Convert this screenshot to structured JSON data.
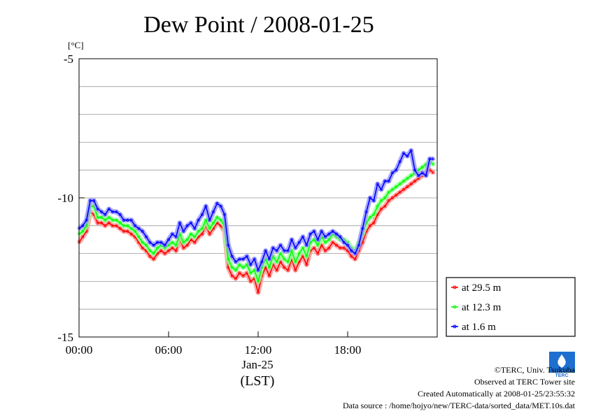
{
  "chart_data": {
    "type": "line",
    "title": "Dew Point / 2008-01-25",
    "ylabel": "[°C]",
    "xlabel_lines": [
      "Jan-25",
      "(LST)"
    ],
    "ylim": [
      -15,
      -5
    ],
    "xlim": [
      0,
      24
    ],
    "y_ticks": [
      {
        "value": -5,
        "label": "-5"
      },
      {
        "value": -10,
        "label": "-10"
      },
      {
        "value": -15,
        "label": "-15"
      }
    ],
    "x_ticks": [
      {
        "value": 0,
        "label": "00:00"
      },
      {
        "value": 6,
        "label": "06:00"
      },
      {
        "value": 12,
        "label": "12:00"
      },
      {
        "value": 18,
        "label": "18:00"
      }
    ],
    "grid": true,
    "legend_position": "outside-bottom-right",
    "series": [
      {
        "name": "at 29.5 m",
        "color": "#ff0000",
        "x": [
          0,
          0.25,
          0.5,
          0.75,
          1.0,
          1.25,
          1.5,
          1.75,
          2.0,
          2.25,
          2.5,
          2.75,
          3.0,
          3.25,
          3.5,
          3.75,
          4.0,
          4.25,
          4.5,
          4.75,
          5.0,
          5.25,
          5.5,
          5.75,
          6.0,
          6.25,
          6.5,
          6.75,
          7.0,
          7.25,
          7.5,
          7.75,
          8.0,
          8.25,
          8.5,
          8.75,
          9.0,
          9.25,
          9.5,
          9.75,
          10.0,
          10.25,
          10.5,
          10.75,
          11.0,
          11.25,
          11.5,
          11.75,
          12.0,
          12.25,
          12.5,
          12.75,
          13.0,
          13.25,
          13.5,
          13.75,
          14.0,
          14.25,
          14.5,
          14.75,
          15.0,
          15.25,
          15.5,
          15.75,
          16.0,
          16.25,
          16.5,
          16.75,
          17.0,
          17.25,
          17.5,
          17.75,
          18.0,
          18.25,
          18.5,
          18.75,
          19.0,
          19.25,
          19.5,
          19.75,
          20.0,
          20.25,
          20.5,
          20.75,
          21.0,
          21.25,
          21.5,
          21.75,
          22.0,
          22.25,
          22.5,
          22.75,
          23.0,
          23.25,
          23.5,
          23.75
        ],
        "values": [
          -11.6,
          -11.4,
          -11.2,
          -10.5,
          -10.6,
          -10.9,
          -10.9,
          -11.0,
          -10.9,
          -11.0,
          -11.0,
          -11.1,
          -11.2,
          -11.2,
          -11.3,
          -11.4,
          -11.6,
          -11.8,
          -11.9,
          -12.1,
          -12.2,
          -12.0,
          -11.9,
          -12.0,
          -11.9,
          -11.8,
          -11.9,
          -11.5,
          -11.8,
          -11.7,
          -11.5,
          -11.6,
          -11.4,
          -11.3,
          -11.0,
          -11.3,
          -11.1,
          -10.9,
          -11.0,
          -11.2,
          -12.5,
          -12.8,
          -12.9,
          -12.7,
          -12.8,
          -12.7,
          -13.0,
          -12.9,
          -13.4,
          -12.8,
          -12.5,
          -12.8,
          -12.4,
          -12.6,
          -12.3,
          -12.5,
          -12.6,
          -12.2,
          -12.6,
          -12.3,
          -12.1,
          -12.4,
          -11.9,
          -11.8,
          -12.0,
          -11.7,
          -11.9,
          -11.8,
          -11.6,
          -11.7,
          -11.8,
          -11.8,
          -11.9,
          -12.1,
          -12.2,
          -11.9,
          -11.6,
          -11.2,
          -11.0,
          -10.9,
          -10.6,
          -10.4,
          -10.3,
          -10.1,
          -10.0,
          -9.9,
          -9.8,
          -9.7,
          -9.6,
          -9.5,
          -9.4,
          -9.3,
          -9.2,
          -9.1,
          -9.0,
          -9.1
        ]
      },
      {
        "name": "at 12.3 m",
        "color": "#00ff00",
        "x": [
          0,
          0.25,
          0.5,
          0.75,
          1.0,
          1.25,
          1.5,
          1.75,
          2.0,
          2.25,
          2.5,
          2.75,
          3.0,
          3.25,
          3.5,
          3.75,
          4.0,
          4.25,
          4.5,
          4.75,
          5.0,
          5.25,
          5.5,
          5.75,
          6.0,
          6.25,
          6.5,
          6.75,
          7.0,
          7.25,
          7.5,
          7.75,
          8.0,
          8.25,
          8.5,
          8.75,
          9.0,
          9.25,
          9.5,
          9.75,
          10.0,
          10.25,
          10.5,
          10.75,
          11.0,
          11.25,
          11.5,
          11.75,
          12.0,
          12.25,
          12.5,
          12.75,
          13.0,
          13.25,
          13.5,
          13.75,
          14.0,
          14.25,
          14.5,
          14.75,
          15.0,
          15.25,
          15.5,
          15.75,
          16.0,
          16.25,
          16.5,
          16.75,
          17.0,
          17.25,
          17.5,
          17.75,
          18.0,
          18.25,
          18.5,
          18.75,
          19.0,
          19.25,
          19.5,
          19.75,
          20.0,
          20.25,
          20.5,
          20.75,
          21.0,
          21.25,
          21.5,
          21.75,
          22.0,
          22.25,
          22.5,
          22.75,
          23.0,
          23.25,
          23.5,
          23.75
        ],
        "values": [
          -11.3,
          -11.2,
          -11.0,
          -10.3,
          -10.3,
          -10.7,
          -10.7,
          -10.8,
          -10.7,
          -10.8,
          -10.8,
          -10.9,
          -11.0,
          -11.0,
          -11.1,
          -11.2,
          -11.4,
          -11.6,
          -11.7,
          -11.9,
          -12.0,
          -11.8,
          -11.7,
          -11.8,
          -11.7,
          -11.6,
          -11.7,
          -11.3,
          -11.6,
          -11.5,
          -11.3,
          -11.4,
          -11.2,
          -11.1,
          -10.8,
          -11.1,
          -10.9,
          -10.7,
          -10.8,
          -11.0,
          -12.2,
          -12.5,
          -12.6,
          -12.4,
          -12.5,
          -12.4,
          -12.7,
          -12.6,
          -13.0,
          -12.5,
          -12.2,
          -12.5,
          -12.1,
          -12.3,
          -12.0,
          -12.2,
          -12.3,
          -11.9,
          -12.3,
          -12.0,
          -11.8,
          -12.1,
          -11.6,
          -11.5,
          -11.7,
          -11.4,
          -11.6,
          -11.5,
          -11.3,
          -11.4,
          -11.5,
          -11.5,
          -11.6,
          -11.8,
          -11.9,
          -11.6,
          -11.3,
          -10.9,
          -10.7,
          -10.6,
          -10.3,
          -10.1,
          -10.0,
          -9.8,
          -9.7,
          -9.6,
          -9.5,
          -9.4,
          -9.3,
          -9.2,
          -9.1,
          -9.0,
          -8.9,
          -8.8,
          -8.7,
          -8.8
        ]
      },
      {
        "name": "at 1.6 m",
        "color": "#0000ff",
        "x": [
          0,
          0.25,
          0.5,
          0.75,
          1.0,
          1.25,
          1.5,
          1.75,
          2.0,
          2.25,
          2.5,
          2.75,
          3.0,
          3.25,
          3.5,
          3.75,
          4.0,
          4.25,
          4.5,
          4.75,
          5.0,
          5.25,
          5.5,
          5.75,
          6.0,
          6.25,
          6.5,
          6.75,
          7.0,
          7.25,
          7.5,
          7.75,
          8.0,
          8.25,
          8.5,
          8.75,
          9.0,
          9.25,
          9.5,
          9.75,
          10.0,
          10.25,
          10.5,
          10.75,
          11.0,
          11.25,
          11.5,
          11.75,
          12.0,
          12.25,
          12.5,
          12.75,
          13.0,
          13.25,
          13.5,
          13.75,
          14.0,
          14.25,
          14.5,
          14.75,
          15.0,
          15.25,
          15.5,
          15.75,
          16.0,
          16.25,
          16.5,
          16.75,
          17.0,
          17.25,
          17.5,
          17.75,
          18.0,
          18.25,
          18.5,
          18.75,
          19.0,
          19.25,
          19.5,
          19.75,
          20.0,
          20.25,
          20.5,
          20.75,
          21.0,
          21.25,
          21.5,
          21.75,
          22.0,
          22.25,
          22.5,
          22.75,
          23.0,
          23.25,
          23.5,
          23.75
        ],
        "values": [
          -11.1,
          -11.0,
          -10.8,
          -10.1,
          -10.1,
          -10.4,
          -10.5,
          -10.6,
          -10.4,
          -10.5,
          -10.5,
          -10.6,
          -10.8,
          -10.8,
          -10.8,
          -11.0,
          -11.1,
          -11.2,
          -11.4,
          -11.6,
          -11.7,
          -11.6,
          -11.6,
          -11.7,
          -11.5,
          -11.3,
          -11.4,
          -10.9,
          -11.2,
          -11.0,
          -10.9,
          -11.1,
          -10.8,
          -10.6,
          -10.3,
          -10.8,
          -10.5,
          -10.2,
          -10.3,
          -10.6,
          -11.7,
          -12.1,
          -12.3,
          -12.2,
          -12.2,
          -12.1,
          -12.4,
          -12.2,
          -12.6,
          -12.3,
          -11.9,
          -12.2,
          -11.8,
          -11.9,
          -11.7,
          -11.9,
          -11.9,
          -11.5,
          -11.8,
          -11.6,
          -11.4,
          -11.7,
          -11.3,
          -11.2,
          -11.5,
          -11.2,
          -11.4,
          -11.3,
          -11.2,
          -11.3,
          -11.4,
          -11.6,
          -11.7,
          -11.9,
          -12.0,
          -11.7,
          -11.1,
          -10.5,
          -10.0,
          -10.1,
          -9.5,
          -9.7,
          -9.4,
          -9.4,
          -9.1,
          -9.0,
          -8.7,
          -8.4,
          -8.5,
          -8.3,
          -9.0,
          -9.2,
          -9.1,
          -9.2,
          -8.6,
          -8.6
        ]
      }
    ]
  },
  "footer": {
    "copyright": "©TERC, Univ. Tsukuba",
    "site": "Observed at TERC Tower site",
    "created": "Created Automatically at 2008-01-25/23:55:32",
    "source": "Data source : /home/hojyo/new/TERC-data/sorted_data/MET.10s.dat"
  },
  "logo": {
    "text": "TERC"
  }
}
